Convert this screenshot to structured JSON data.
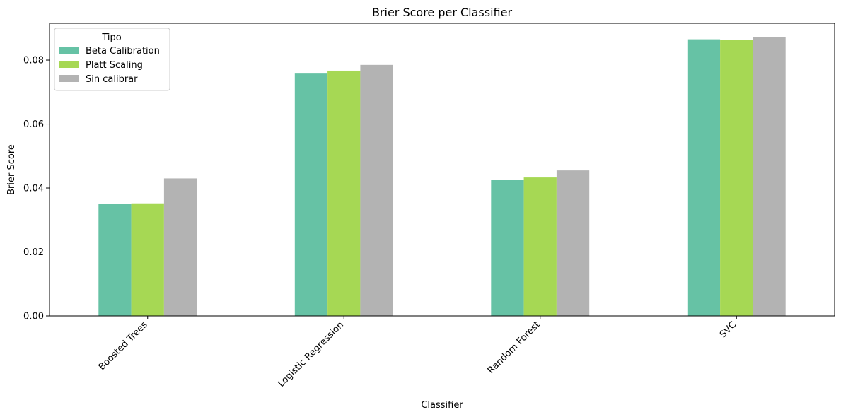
{
  "chart_data": {
    "type": "bar",
    "title": "Brier Score per Classifier",
    "xlabel": "Classifier",
    "ylabel": "Brier Score",
    "categories": [
      "Boosted Trees",
      "Logistic Regression",
      "Random Forest",
      "SVC"
    ],
    "series": [
      {
        "name": "Beta Calibration",
        "color": "#66c2a5",
        "values": [
          0.035,
          0.076,
          0.0425,
          0.0865
        ]
      },
      {
        "name": "Platt Scaling",
        "color": "#a6d854",
        "values": [
          0.0352,
          0.0767,
          0.0433,
          0.0862
        ]
      },
      {
        "name": "Sin calibrar",
        "color": "#b3b3b3",
        "values": [
          0.043,
          0.0785,
          0.0455,
          0.0872
        ]
      }
    ],
    "ylim": [
      0,
      0.0915
    ],
    "yticks": [
      "0.00",
      "0.02",
      "0.04",
      "0.06",
      "0.08"
    ],
    "ytick_values": [
      0,
      0.02,
      0.04,
      0.06,
      0.08
    ],
    "legend": {
      "title": "Tipo",
      "placement": "top-left"
    },
    "grid": false
  }
}
